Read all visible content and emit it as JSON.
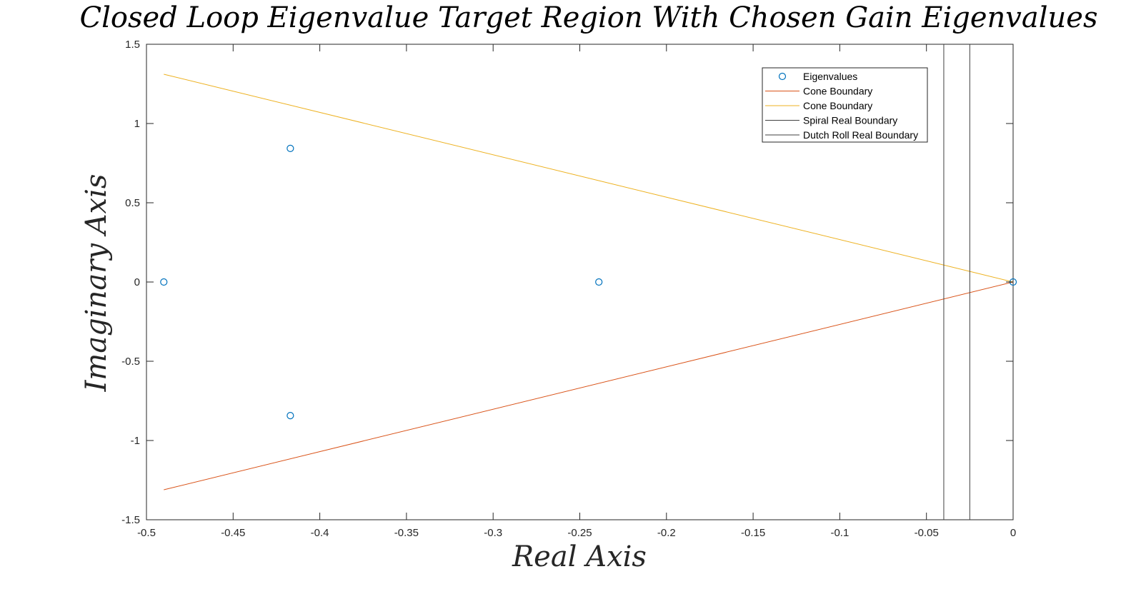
{
  "chart_data": {
    "type": "scatter",
    "title": "Closed Loop Eigenvalue Target Region With Chosen Gain Eigenvalues",
    "xlabel": "Real Axis",
    "ylabel": "Imaginary Axis",
    "xlim": [
      -0.5,
      0
    ],
    "ylim": [
      -1.5,
      1.5
    ],
    "xticks": [
      -0.5,
      -0.45,
      -0.4,
      -0.35,
      -0.3,
      -0.25,
      -0.2,
      -0.15,
      -0.1,
      -0.05,
      0
    ],
    "xtick_labels": [
      "-0.5",
      "-0.45",
      "-0.4",
      "-0.35",
      "-0.3",
      "-0.25",
      "-0.2",
      "-0.15",
      "-0.1",
      "-0.05",
      "0"
    ],
    "yticks": [
      -1.5,
      -1,
      -0.5,
      0,
      0.5,
      1,
      1.5
    ],
    "ytick_labels": [
      "-1.5",
      "-1",
      "-0.5",
      "0",
      "0.5",
      "1",
      "1.5"
    ],
    "grid": false,
    "legend_position": "top-right",
    "series": [
      {
        "name": "Eigenvalues",
        "kind": "markers",
        "marker": "circle",
        "color": "#0072BD",
        "points": [
          {
            "x": -0.417,
            "y": 0.843
          },
          {
            "x": -0.49,
            "y": 0
          },
          {
            "x": -0.239,
            "y": 0
          },
          {
            "x": -0.417,
            "y": -0.843
          },
          {
            "x": 0,
            "y": 0
          }
        ]
      },
      {
        "name": "Cone Boundary",
        "kind": "line",
        "color": "#D95319",
        "points": [
          {
            "x": -0.49,
            "y": -1.311
          },
          {
            "x": 0,
            "y": 0
          }
        ]
      },
      {
        "name": "Cone Boundary",
        "kind": "line",
        "color": "#EDB120",
        "points": [
          {
            "x": -0.49,
            "y": 1.311
          },
          {
            "x": 0,
            "y": 0
          }
        ]
      },
      {
        "name": "Spiral Real Boundary",
        "kind": "line",
        "color": "#404040",
        "points": [
          {
            "x": -0.04,
            "y": -1.5
          },
          {
            "x": -0.04,
            "y": 1.5
          }
        ]
      },
      {
        "name": "Dutch Roll Real Boundary",
        "kind": "line",
        "color": "#404040",
        "points": [
          {
            "x": -0.025,
            "y": -1.5
          },
          {
            "x": -0.025,
            "y": 1.5
          }
        ]
      }
    ]
  }
}
